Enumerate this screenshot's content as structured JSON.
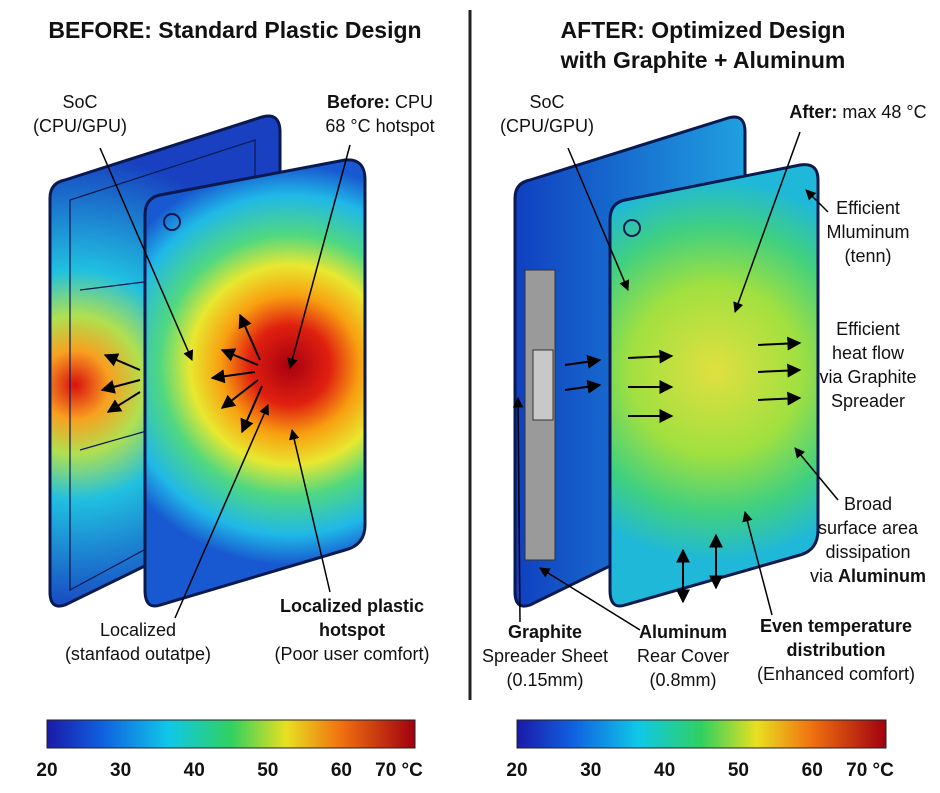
{
  "panels": [
    {
      "title": [
        "BEFORE: Standard Plastic Design"
      ],
      "labels": [
        {
          "lines": [
            [
              "SoC"
            ],
            [
              "(CPU/GPU)"
            ]
          ]
        },
        {
          "lines": [
            [
              {
                "bold": "Before:"
              },
              " CPU"
            ],
            [
              "68 °C hotspot"
            ]
          ]
        },
        {
          "lines": [
            [
              "Localized"
            ],
            [
              "(stanfaod outatpe)"
            ]
          ]
        },
        {
          "lines": [
            [
              {
                "bold": "Localized plastic"
              }
            ],
            [
              {
                "bold": "hotspot"
              }
            ],
            [
              "(Poor user comfort)"
            ]
          ]
        }
      ],
      "colorbar": [
        "20",
        "30",
        "40",
        "50",
        "60",
        "70 °C"
      ]
    },
    {
      "title": [
        "AFTER: Optimized Design",
        "with Graphite + Aluminum"
      ],
      "labels": [
        {
          "lines": [
            [
              "SoC"
            ],
            [
              "(CPU/GPU)"
            ]
          ]
        },
        {
          "lines": [
            [
              {
                "bold": "After:"
              },
              " max 48 °C"
            ]
          ]
        },
        {
          "lines": [
            [
              "Efficient"
            ],
            [
              "Mluminum"
            ],
            [
              "(tenn)"
            ]
          ]
        },
        {
          "lines": [
            [
              "Efficient"
            ],
            [
              "heat flow"
            ],
            [
              "via Graphite"
            ],
            [
              "Spreader"
            ]
          ]
        },
        {
          "lines": [
            [
              "Broad"
            ],
            [
              "surface area"
            ],
            [
              "dissipation"
            ],
            [
              "via ",
              {
                "bold": "Aluminum"
              }
            ]
          ]
        },
        {
          "lines": [
            [
              {
                "bold": "Graphite"
              }
            ],
            [
              "Spreader Sheet"
            ],
            [
              "(0.15mm)"
            ]
          ]
        },
        {
          "lines": [
            [
              {
                "bold": "Aluminum"
              }
            ],
            [
              "Rear Cover"
            ],
            [
              "(0.8mm)"
            ]
          ]
        },
        {
          "lines": [
            [
              {
                "bold": "Even temperature"
              }
            ],
            [
              {
                "bold": "distribution"
              }
            ],
            [
              "(Enhanced comfort)"
            ]
          ]
        }
      ],
      "colorbar": [
        "20",
        "30",
        "40",
        "50",
        "60",
        "70 °C"
      ]
    }
  ]
}
